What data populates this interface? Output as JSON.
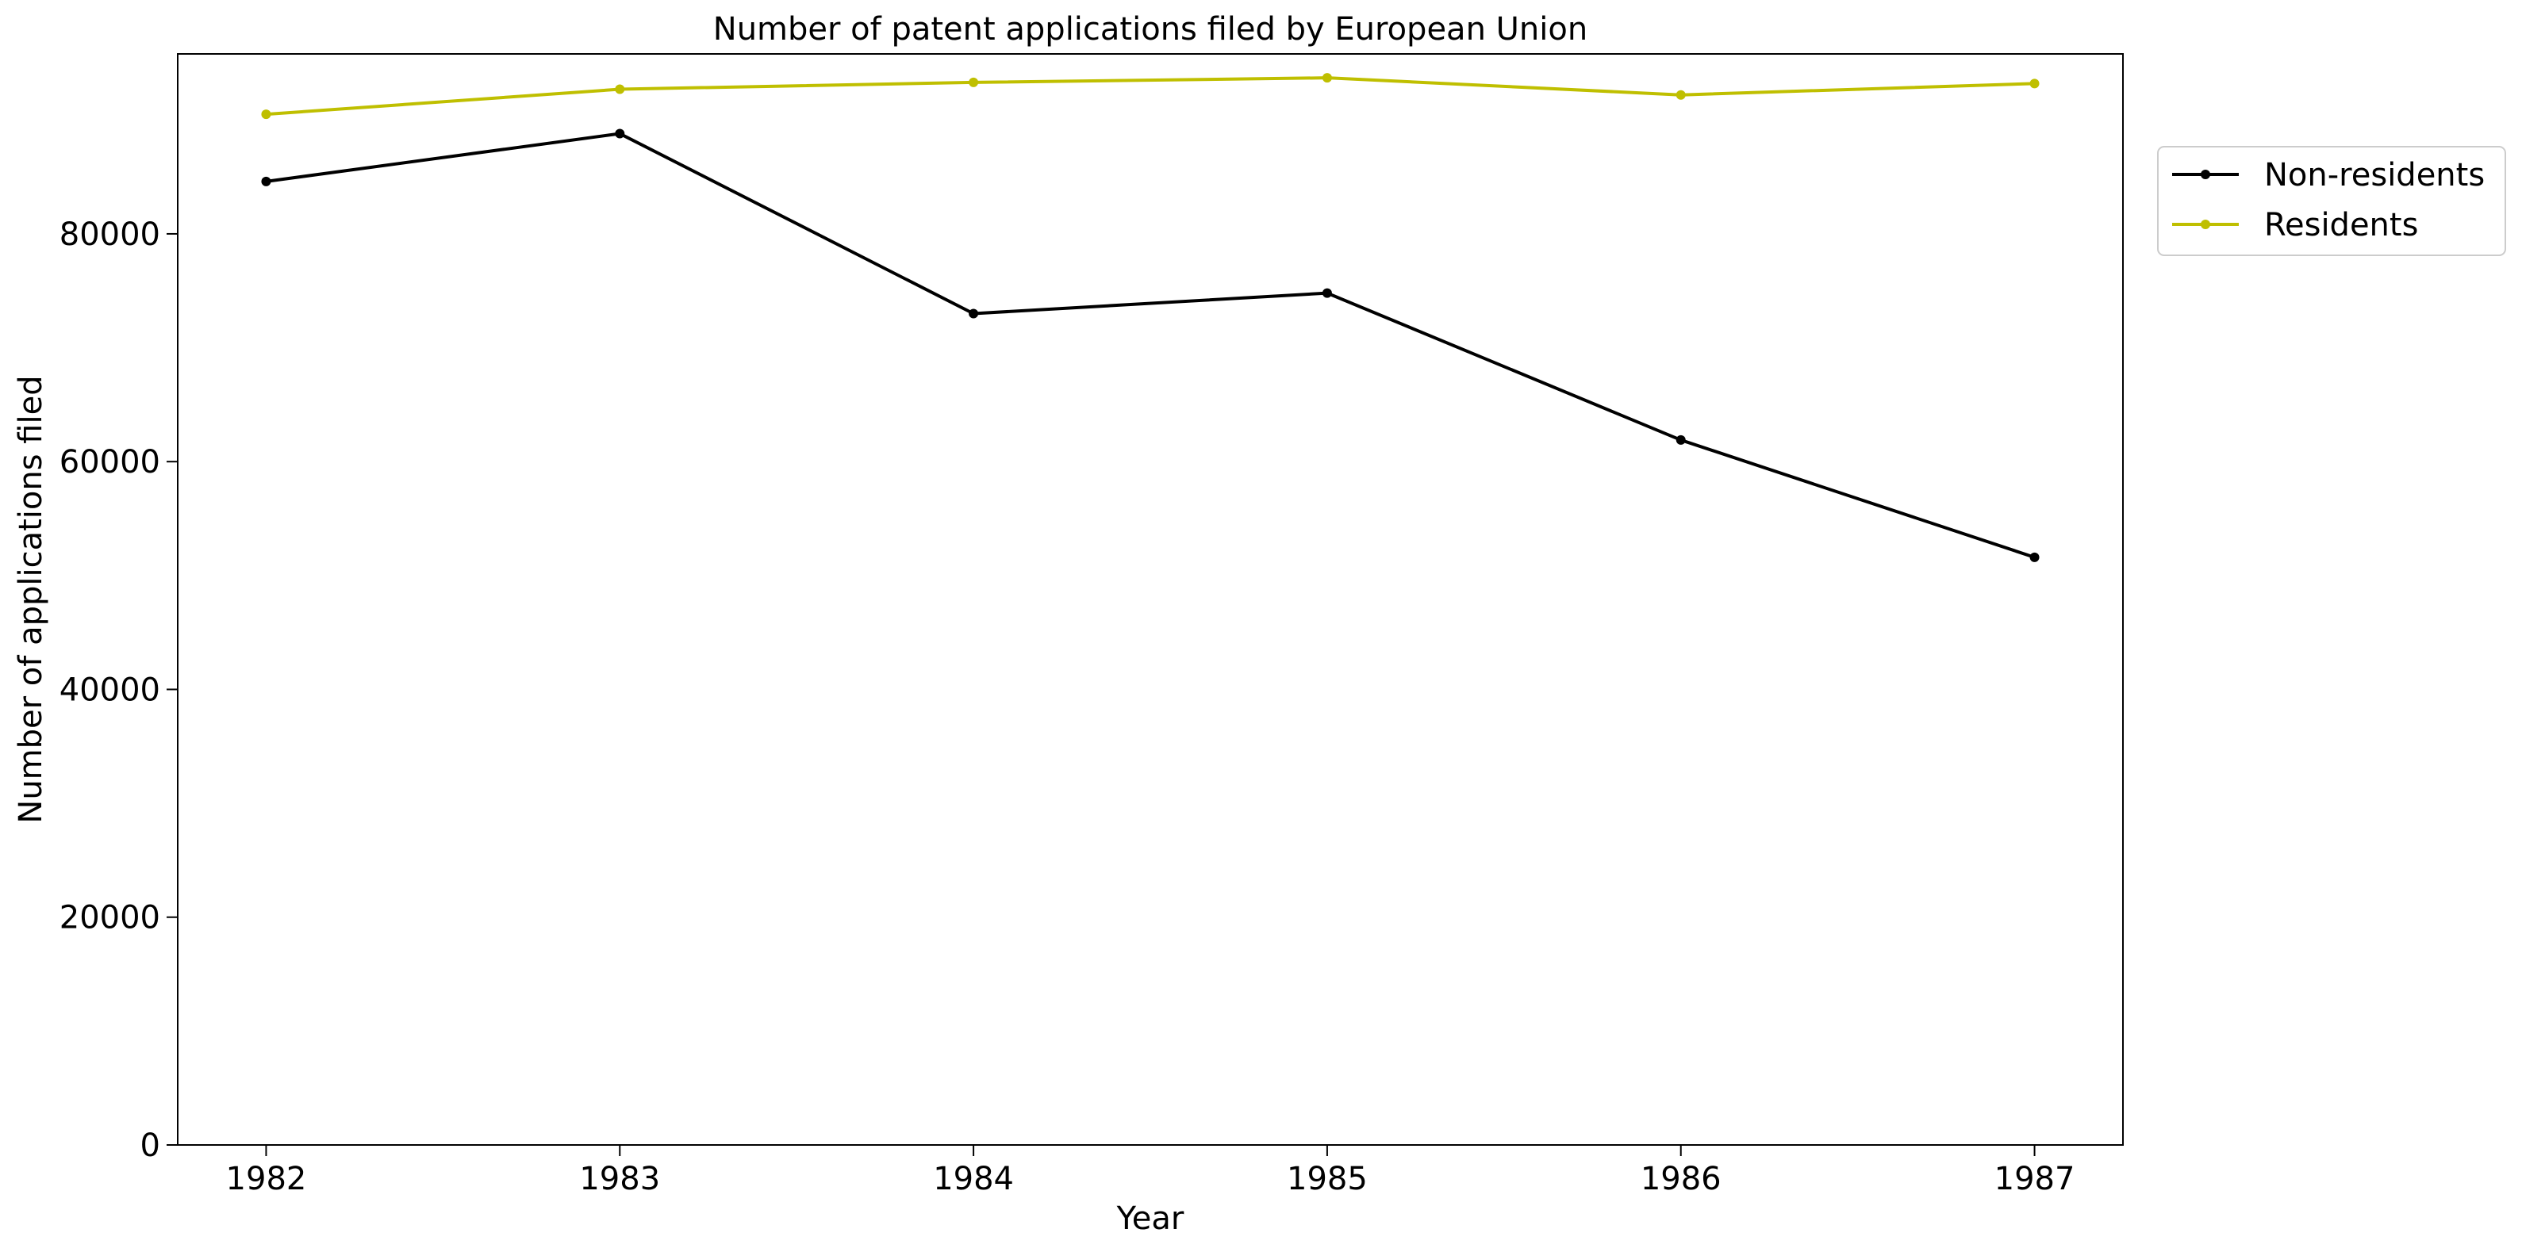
{
  "chart_data": {
    "type": "line",
    "title": "Number of patent applications filed by European Union",
    "xlabel": "Year",
    "ylabel": "Number of applications filed",
    "x": [
      1982,
      1983,
      1984,
      1985,
      1986,
      1987
    ],
    "x_tick_labels": [
      "1982",
      "1983",
      "1984",
      "1985",
      "1986",
      "1987"
    ],
    "ylim": [
      0,
      95800
    ],
    "y_ticks": [
      0,
      20000,
      40000,
      60000,
      80000
    ],
    "y_tick_labels": [
      "0",
      "20000",
      "40000",
      "60000",
      "80000"
    ],
    "grid": false,
    "legend_position": "outside-right-top",
    "series": [
      {
        "name": "Non-residents",
        "color": "#000000",
        "values": [
          84600,
          88800,
          73000,
          74800,
          61900,
          51600
        ]
      },
      {
        "name": "Residents",
        "color": "#bfbf00",
        "values": [
          90500,
          92700,
          93300,
          93700,
          92200,
          93200
        ]
      }
    ]
  }
}
